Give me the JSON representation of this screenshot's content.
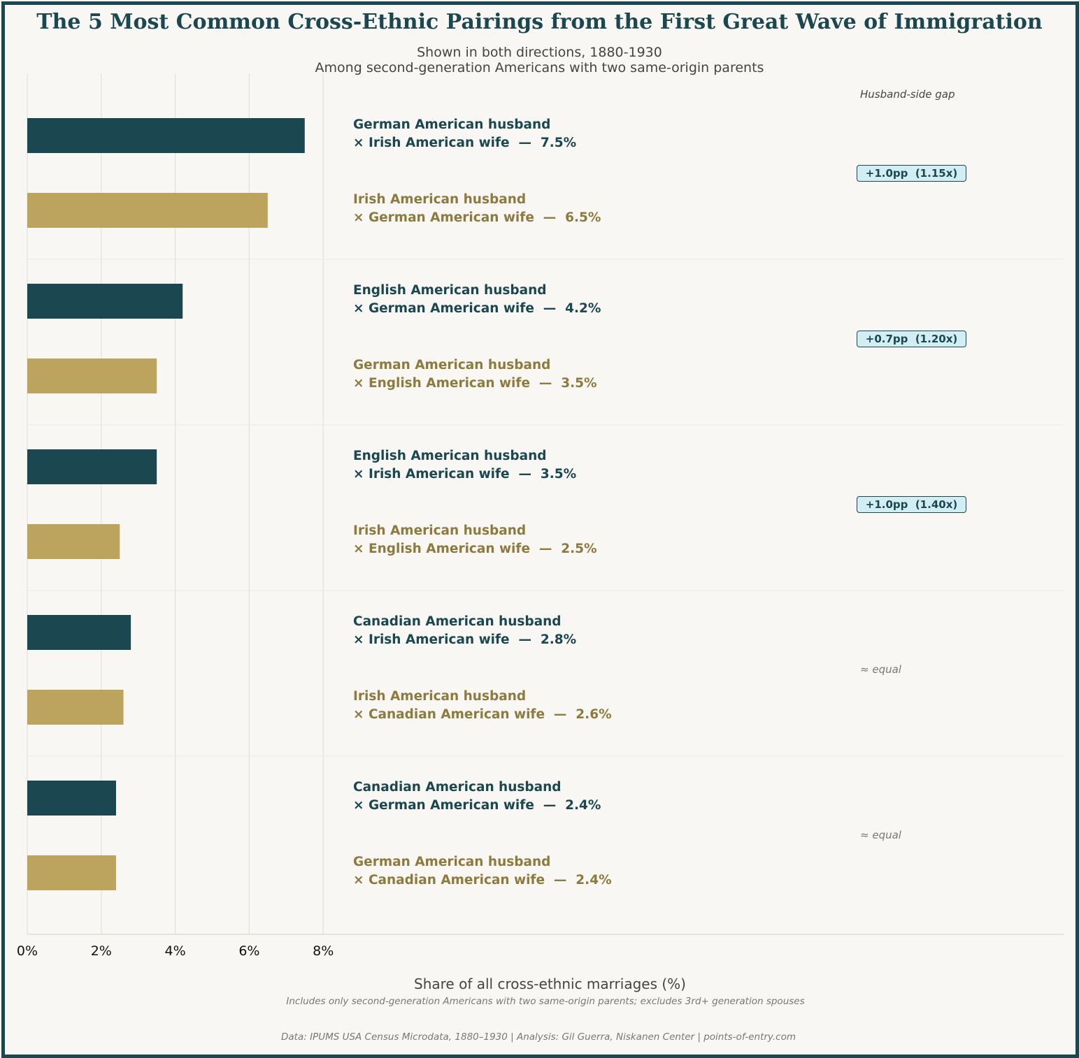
{
  "chart_data": {
    "type": "bar",
    "orientation": "horizontal",
    "title": "The 5 Most Common Cross-Ethnic Pairings from the First Great Wave of Immigration",
    "subtitle": [
      "Shown in both directions, 1880-1930",
      "Among second-generation Americans with two same-origin parents"
    ],
    "xlabel": "Share of all cross-ethnic marriages (%)",
    "xlim": [
      0,
      28
    ],
    "xticks": [
      "0%",
      "2%",
      "4%",
      "6%",
      "8%"
    ],
    "xtick_values": [
      0,
      2,
      4,
      6,
      8
    ],
    "gap_header": "Husband-side gap",
    "colors": {
      "dark": "#1b4751",
      "light": "#bca35e"
    },
    "groups": [
      {
        "bars": [
          {
            "line1": "German American husband",
            "line2": "× Irish American wife  —  7.5%",
            "value": 7.5
          },
          {
            "line1": "Irish American husband",
            "line2": "× German American wife  —  6.5%",
            "value": 6.5
          }
        ],
        "gap": "+1.0pp  (1.15x)",
        "gap_type": "badge"
      },
      {
        "bars": [
          {
            "line1": "English American husband",
            "line2": "× German American wife  —  4.2%",
            "value": 4.2
          },
          {
            "line1": "German American husband",
            "line2": "× English American wife  —  3.5%",
            "value": 3.5
          }
        ],
        "gap": "+0.7pp  (1.20x)",
        "gap_type": "badge"
      },
      {
        "bars": [
          {
            "line1": "English American husband",
            "line2": "× Irish American wife  —  3.5%",
            "value": 3.5
          },
          {
            "line1": "Irish American husband",
            "line2": "× English American wife  —  2.5%",
            "value": 2.5
          }
        ],
        "gap": "+1.0pp  (1.40x)",
        "gap_type": "badge"
      },
      {
        "bars": [
          {
            "line1": "Canadian American husband",
            "line2": "× Irish American wife  —  2.8%",
            "value": 2.8
          },
          {
            "line1": "Irish American husband",
            "line2": "× Canadian American wife  —  2.6%",
            "value": 2.6
          }
        ],
        "gap": "≈ equal",
        "gap_type": "text"
      },
      {
        "bars": [
          {
            "line1": "Canadian American husband",
            "line2": "× German American wife  —  2.4%",
            "value": 2.4
          },
          {
            "line1": "German American husband",
            "line2": "× Canadian American wife  —  2.4%",
            "value": 2.4
          }
        ],
        "gap": "≈ equal",
        "gap_type": "text"
      }
    ],
    "note": "Includes only second-generation Americans with two same-origin parents; excludes 3rd+ generation spouses",
    "source": "Data: IPUMS USA Census Microdata, 1880–1930  |  Analysis: Gil Guerra, Niskanen Center  |  points-of-entry.com"
  }
}
